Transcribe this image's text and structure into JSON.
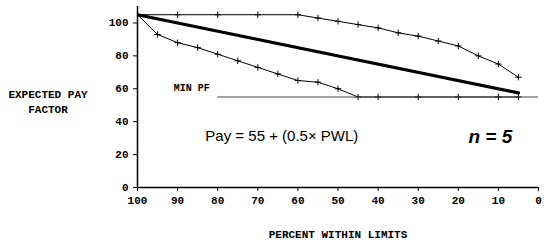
{
  "chart_data": {
    "type": "line",
    "x_label": "PERCENT WITHIN LIMITS",
    "y_label": "EXPECTED PAY FACTOR",
    "xlim": [
      100,
      0
    ],
    "xticks": [
      100,
      90,
      80,
      70,
      60,
      50,
      40,
      30,
      20,
      10,
      0
    ],
    "ylim": [
      0,
      110
    ],
    "yticks": [
      0,
      20,
      40,
      60,
      80,
      100
    ],
    "grid": false,
    "series": [
      {
        "x": [
          100,
          90,
          80,
          70,
          60,
          55,
          50,
          45,
          40,
          35,
          30,
          25,
          20,
          15,
          10,
          5
        ],
        "values": [
          105,
          105,
          105,
          105,
          105,
          103,
          101,
          99,
          97,
          94,
          92,
          89,
          86,
          80,
          75,
          67
        ],
        "color": "#000000",
        "marker": "plus",
        "line_style": "solid"
      },
      {
        "x": [
          100,
          5
        ],
        "values": [
          105,
          57.5
        ],
        "color": "#000000",
        "line_style": "thick"
      },
      {
        "x": [
          100,
          95,
          90,
          85,
          80,
          75,
          70,
          65,
          60,
          55,
          50,
          45,
          40,
          30,
          20,
          10,
          5
        ],
        "values": [
          105,
          93,
          88,
          85,
          81,
          77,
          73,
          69,
          65,
          64,
          60,
          55,
          55,
          55,
          55,
          55,
          55
        ],
        "color": "#000000",
        "marker": "plus",
        "line_style": "solid"
      },
      {
        "name": "MIN PF",
        "x": [
          80,
          0
        ],
        "values": [
          55,
          55
        ],
        "color": "#444444",
        "line_style": "solid"
      }
    ],
    "annotations": [
      {
        "text": "Pay = 55 + (0.5× PWL)",
        "x": 64,
        "y": 31
      },
      {
        "text": "n = 5",
        "x": 12,
        "y": 31
      }
    ]
  }
}
